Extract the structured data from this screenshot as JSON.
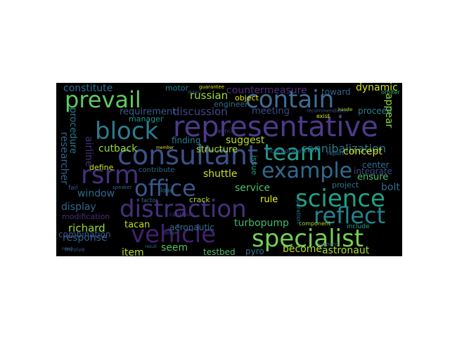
{
  "wordcloud": {
    "words": [
      {
        "text": "representative",
        "color": "#4d3a8a"
      },
      {
        "text": "distraction",
        "color": "#46307d"
      },
      {
        "text": "vehicle",
        "color": "#42216f"
      },
      {
        "text": "consultant",
        "color": "#3b528b"
      },
      {
        "text": "contain",
        "color": "#3f6d95"
      },
      {
        "text": "prevail",
        "color": "#5ec962"
      },
      {
        "text": "block",
        "color": "#2c7c8e"
      },
      {
        "text": "team",
        "color": "#1f9e89"
      },
      {
        "text": "rsrm",
        "color": "#46307d"
      },
      {
        "text": "example",
        "color": "#306a8e"
      },
      {
        "text": "office",
        "color": "#37588c"
      },
      {
        "text": "science",
        "color": "#1fa187"
      },
      {
        "text": "reflect",
        "color": "#25838e"
      },
      {
        "text": "specialist",
        "color": "#75d054"
      },
      {
        "text": "russian",
        "color": "#9fda3a"
      },
      {
        "text": "discussion",
        "color": "#3f4788"
      },
      {
        "text": "cannibalization",
        "color": "#2a788e"
      },
      {
        "text": "concept",
        "color": "#d8e219"
      },
      {
        "text": "countermeasure",
        "color": "#4e2d7e"
      },
      {
        "text": "constitute",
        "color": "#2e6f8e"
      },
      {
        "text": "dynamic",
        "color": "#cfe11c"
      },
      {
        "text": "requirement",
        "color": "#355f8d"
      },
      {
        "text": "cutback",
        "color": "#9bd93c"
      },
      {
        "text": "suggest",
        "color": "#b5de2b"
      },
      {
        "text": "structure",
        "color": "#b4de2c"
      },
      {
        "text": "shuttle",
        "color": "#cde11d"
      },
      {
        "text": "service",
        "color": "#4ac16d"
      },
      {
        "text": "window",
        "color": "#30698e"
      },
      {
        "text": "display",
        "color": "#31688e"
      },
      {
        "text": "richard",
        "color": "#9dd93b"
      },
      {
        "text": "tacan",
        "color": "#c2df23"
      },
      {
        "text": "response",
        "color": "#355e8d"
      },
      {
        "text": "combination",
        "color": "#38598c"
      },
      {
        "text": "turbopump",
        "color": "#3dbc74"
      },
      {
        "text": "seem",
        "color": "#50c46a"
      },
      {
        "text": "item",
        "color": "#b8de29"
      },
      {
        "text": "become",
        "color": "#b5de2b"
      },
      {
        "text": "astronaut",
        "color": "#a8db34"
      },
      {
        "text": "testbed",
        "color": "#4ec36b"
      },
      {
        "text": "aeronautic",
        "color": "#2c738e"
      },
      {
        "text": "rule",
        "color": "#ecf51c"
      },
      {
        "text": "bolt",
        "color": "#2f6c8e"
      },
      {
        "text": "project",
        "color": "#2a768e"
      },
      {
        "text": "ensure",
        "color": "#4ac16d"
      },
      {
        "text": "center",
        "color": "#2d718e"
      },
      {
        "text": "integrate",
        "color": "#3f4889"
      },
      {
        "text": "meeting",
        "color": "#3d4e8a"
      },
      {
        "text": "proceed",
        "color": "#25848e"
      },
      {
        "text": "toward",
        "color": "#34618d"
      },
      {
        "text": "engineer",
        "color": "#2e6e8e"
      },
      {
        "text": "object",
        "color": "#e2e418"
      },
      {
        "text": "finding",
        "color": "#277f8e"
      },
      {
        "text": "crack",
        "color": "#a2da37"
      },
      {
        "text": "define",
        "color": "#cae11f"
      },
      {
        "text": "manager",
        "color": "#20928c"
      },
      {
        "text": "pyro",
        "color": "#2a778e"
      },
      {
        "text": "researcher",
        "color": "#32648e"
      },
      {
        "text": "procedure",
        "color": "#29798e"
      },
      {
        "text": "airline",
        "color": "#472f7d"
      },
      {
        "text": "appear",
        "color": "#8bd646"
      },
      {
        "text": "motor",
        "color": "#25848e"
      },
      {
        "text": "issue",
        "color": "#1fa088"
      },
      {
        "text": "incorporate",
        "color": "#3b528b"
      },
      {
        "text": "contribute",
        "color": "#31688e"
      },
      {
        "text": "factor",
        "color": "#2d708e"
      },
      {
        "text": "load",
        "color": "#2c728e"
      },
      {
        "text": "modification",
        "color": "#472c7a"
      },
      {
        "text": "fail",
        "color": "#3b528b"
      },
      {
        "text": "speaker",
        "color": "#34618d"
      },
      {
        "text": "member",
        "color": "#f1e51d"
      },
      {
        "text": "involve",
        "color": "#3b528b"
      },
      {
        "text": "need",
        "color": "#31688e"
      },
      {
        "text": "component",
        "color": "#a5db36"
      },
      {
        "text": "guarantee",
        "color": "#d8e219"
      },
      {
        "text": "orbiter",
        "color": "#35b779"
      },
      {
        "text": "operation",
        "color": "#2d718e"
      },
      {
        "text": "include",
        "color": "#1fa188"
      },
      {
        "text": "continue",
        "color": "#46337e"
      },
      {
        "text": "suspend",
        "color": "#3a538b"
      },
      {
        "text": "recommendation",
        "color": "#3b528b"
      },
      {
        "text": "report",
        "color": "#2c738e"
      },
      {
        "text": "result",
        "color": "#2e6e8e"
      },
      {
        "text": "utilize",
        "color": "#3f4889"
      },
      {
        "text": "exist",
        "color": "#e5e419"
      },
      {
        "text": "handle",
        "color": "#b5de2b"
      },
      {
        "text": "launch",
        "color": "#433e85"
      },
      {
        "text": "detect",
        "color": "#39568c"
      }
    ]
  }
}
